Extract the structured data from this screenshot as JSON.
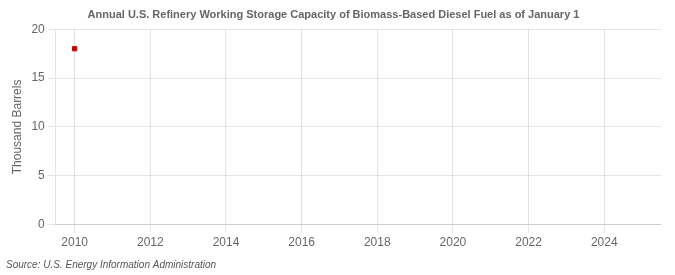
{
  "chart_data": {
    "type": "scatter",
    "title": "Annual U.S. Refinery Working Storage Capacity of Biomass-Based Diesel Fuel as of January 1",
    "ylabel": "Thousand Barrels",
    "annotation": "Source: U.S. Energy Information Administration",
    "x": [
      2010
    ],
    "values": [
      18
    ],
    "color": "#cc0000",
    "marker": "square",
    "xlim": [
      2009.5,
      2025.5
    ],
    "xticks": [
      2010,
      2012,
      2014,
      2016,
      2018,
      2020,
      2022,
      2024
    ],
    "ylim": [
      0,
      20
    ],
    "yticks": [
      0,
      5,
      10,
      15,
      20
    ],
    "grid": true
  }
}
